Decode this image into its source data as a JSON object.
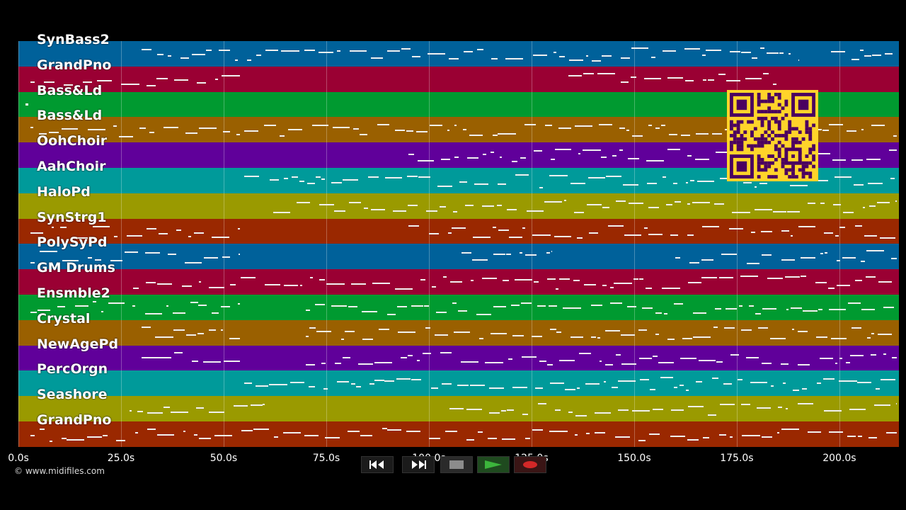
{
  "tracks": [
    {
      "label": "SynBass2",
      "color": "#00619a"
    },
    {
      "label": "GrandPno",
      "color": "#9a0033"
    },
    {
      "label": "Bass&Ld",
      "color": "#009a30"
    },
    {
      "label": "Bass&Ld",
      "color": "#9a6000"
    },
    {
      "label": "OohChoir",
      "color": "#60009a"
    },
    {
      "label": "AahChoir",
      "color": "#009a9a"
    },
    {
      "label": "HaloPd",
      "color": "#9a9a00"
    },
    {
      "label": "SynStrg1",
      "color": "#9a2800"
    },
    {
      "label": "PolySyPd",
      "color": "#00619a"
    },
    {
      "label": "GM Drums",
      "color": "#9a0033"
    },
    {
      "label": "Ensmble2",
      "color": "#009a30"
    },
    {
      "label": "Crystal",
      "color": "#9a6000"
    },
    {
      "label": "NewAgePd",
      "color": "#60009a"
    },
    {
      "label": "PercOrgn",
      "color": "#009a9a"
    },
    {
      "label": "Seashore",
      "color": "#9a9a00"
    },
    {
      "label": "GrandPno",
      "color": "#9a2800"
    }
  ],
  "timeline": {
    "ticks": [
      "0.0s",
      "25.0s",
      "50.0s",
      "75.0s",
      "100.0s",
      "125.0s",
      "150.0s",
      "175.0s",
      "200.0s"
    ],
    "tick_values": [
      0,
      25,
      50,
      75,
      100,
      125,
      150,
      175,
      200
    ],
    "end_seconds": 214.5
  },
  "copyright": "© www.midifiles.com",
  "transport": {
    "rewind": "rewind-icon",
    "fast_forward": "fast-forward-icon",
    "stop": "stop-icon",
    "play": "play-icon",
    "record": "record-icon"
  },
  "colors": {
    "background": "#000000",
    "note": "#f0f0f0",
    "qr_background": "#ffd42a",
    "qr_foreground": "#4a0060",
    "play_green": "#3cb43c",
    "record_red": "#d22828"
  }
}
